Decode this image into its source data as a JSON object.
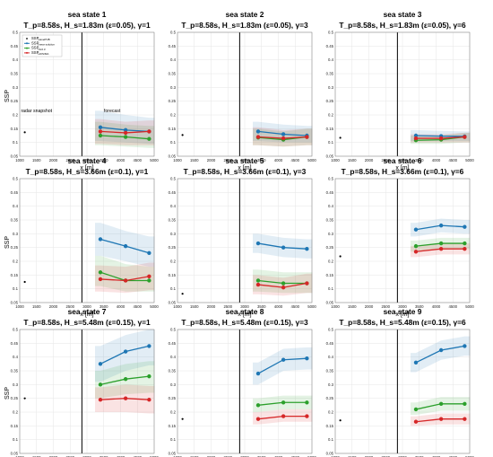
{
  "chart_data": [
    {
      "type": "line",
      "title_line1": "sea state 1",
      "title_line2": "T_p=8.58s, H_s=1.83m (ε=0.05), γ=1",
      "ylabel": "SSP",
      "xlabel": "x [m]",
      "xlim": [
        1000,
        5000
      ],
      "ylim": [
        0.05,
        0.5
      ],
      "xticks": [
        1000,
        1500,
        2000,
        2500,
        3000,
        3500,
        4000,
        4500,
        5000
      ],
      "yticks": [
        0.05,
        0.1,
        0.15,
        0.2,
        0.25,
        0.3,
        0.35,
        0.4,
        0.45,
        0.5
      ],
      "divider_x": 2850,
      "grid": true,
      "annotations": [
        {
          "text": "radar snapshot",
          "x": 1500,
          "y": 0.21
        },
        {
          "text": "forecast",
          "x": 3750,
          "y": 0.21
        }
      ],
      "legend": {
        "placement": "top-left",
        "entries": [
          {
            "main": "SSP",
            "sub": "wavePUB",
            "color": "#000000"
          },
          {
            "main": "SSP",
            "sub": "linear solution",
            "color": "#1f77b4"
          },
          {
            "main": "SSP",
            "sub": "NL0.3",
            "color": "#2ca02c"
          },
          {
            "main": "SSP",
            "sub": "HOS/MA",
            "color": "#d62728"
          }
        ]
      },
      "snapshot": {
        "x": 1150,
        "y": 0.137
      },
      "x": [
        3400,
        4150,
        4850
      ],
      "series": [
        {
          "color": "#1f77b4",
          "values": [
            0.155,
            0.145,
            0.14
          ],
          "band": [
            [
              0.105,
              0.215
            ],
            [
              0.1,
              0.2
            ],
            [
              0.095,
              0.19
            ]
          ]
        },
        {
          "color": "#2ca02c",
          "values": [
            0.125,
            0.12,
            0.113
          ],
          "band": [
            [
              0.09,
              0.175
            ],
            [
              0.085,
              0.165
            ],
            [
              0.08,
              0.16
            ]
          ]
        },
        {
          "color": "#d62728",
          "values": [
            0.14,
            0.135,
            0.14
          ],
          "band": [
            [
              0.095,
              0.185
            ],
            [
              0.09,
              0.175
            ],
            [
              0.09,
              0.18
            ]
          ]
        }
      ]
    },
    {
      "type": "line",
      "title_line1": "sea state 2",
      "title_line2": "T_p=8.58s, H_s=1.83m (ε=0.05), γ=3",
      "ylabel": "",
      "xlabel": "x [m]",
      "xlim": [
        1000,
        5000
      ],
      "ylim": [
        0.05,
        0.5
      ],
      "xticks": [
        1000,
        1500,
        2000,
        2500,
        3000,
        3500,
        4000,
        4500,
        5000
      ],
      "yticks": [
        0.05,
        0.1,
        0.15,
        0.2,
        0.25,
        0.3,
        0.35,
        0.4,
        0.45,
        0.5
      ],
      "divider_x": 2850,
      "grid": true,
      "snapshot": {
        "x": 1150,
        "y": 0.127
      },
      "x": [
        3400,
        4150,
        4850
      ],
      "series": [
        {
          "color": "#1f77b4",
          "values": [
            0.14,
            0.13,
            0.125
          ],
          "band": [
            [
              0.105,
              0.175
            ],
            [
              0.1,
              0.165
            ],
            [
              0.1,
              0.16
            ]
          ]
        },
        {
          "color": "#2ca02c",
          "values": [
            0.118,
            0.11,
            0.12
          ],
          "band": [
            [
              0.09,
              0.15
            ],
            [
              0.085,
              0.14
            ],
            [
              0.09,
              0.15
            ]
          ]
        },
        {
          "color": "#d62728",
          "values": [
            0.12,
            0.115,
            0.12
          ],
          "band": [
            [
              0.09,
              0.155
            ],
            [
              0.085,
              0.145
            ],
            [
              0.09,
              0.15
            ]
          ]
        }
      ]
    },
    {
      "type": "line",
      "title_line1": "sea state 3",
      "title_line2": "T_p=8.58s, H_s=1.83m (ε=0.05), γ=6",
      "ylabel": "",
      "xlabel": "x [m]",
      "xlim": [
        1000,
        5000
      ],
      "ylim": [
        0.05,
        0.5
      ],
      "xticks": [
        1000,
        1500,
        2000,
        2500,
        3000,
        3500,
        4000,
        4500,
        5000
      ],
      "yticks": [
        0.05,
        0.1,
        0.15,
        0.2,
        0.25,
        0.3,
        0.35,
        0.4,
        0.45,
        0.5
      ],
      "divider_x": 2850,
      "grid": true,
      "snapshot": {
        "x": 1150,
        "y": 0.117
      },
      "x": [
        3400,
        4150,
        4850
      ],
      "series": [
        {
          "color": "#1f77b4",
          "values": [
            0.125,
            0.123,
            0.122
          ],
          "band": [
            [
              0.105,
              0.145
            ],
            [
              0.105,
              0.142
            ],
            [
              0.105,
              0.14
            ]
          ]
        },
        {
          "color": "#2ca02c",
          "values": [
            0.108,
            0.11,
            0.12
          ],
          "band": [
            [
              0.095,
              0.125
            ],
            [
              0.095,
              0.125
            ],
            [
              0.1,
              0.135
            ]
          ]
        },
        {
          "color": "#d62728",
          "values": [
            0.115,
            0.115,
            0.12
          ],
          "band": [
            [
              0.1,
              0.13
            ],
            [
              0.1,
              0.13
            ],
            [
              0.1,
              0.135
            ]
          ]
        }
      ]
    },
    {
      "type": "line",
      "title_line1": "sea state 4",
      "title_line2": "T_p=8.58s, H_s=3.66m (ε=0.1), γ=1",
      "ylabel": "SSP",
      "xlabel": "x [m]",
      "xlim": [
        1000,
        5000
      ],
      "ylim": [
        0.05,
        0.5
      ],
      "xticks": [
        1000,
        1500,
        2000,
        2500,
        3000,
        3500,
        4000,
        4500,
        5000
      ],
      "yticks": [
        0.05,
        0.1,
        0.15,
        0.2,
        0.25,
        0.3,
        0.35,
        0.4,
        0.45,
        0.5
      ],
      "divider_x": 2850,
      "grid": true,
      "snapshot": {
        "x": 1150,
        "y": 0.125
      },
      "x": [
        3400,
        4150,
        4850
      ],
      "series": [
        {
          "color": "#1f77b4",
          "values": [
            0.28,
            0.255,
            0.23
          ],
          "band": [
            [
              0.22,
              0.34
            ],
            [
              0.2,
              0.31
            ],
            [
              0.18,
              0.29
            ]
          ]
        },
        {
          "color": "#2ca02c",
          "values": [
            0.16,
            0.13,
            0.13
          ],
          "band": [
            [
              0.11,
              0.22
            ],
            [
              0.09,
              0.19
            ],
            [
              0.09,
              0.18
            ]
          ]
        },
        {
          "color": "#d62728",
          "values": [
            0.135,
            0.13,
            0.145
          ],
          "band": [
            [
              0.09,
              0.185
            ],
            [
              0.085,
              0.18
            ],
            [
              0.095,
              0.195
            ]
          ]
        }
      ]
    },
    {
      "type": "line",
      "title_line1": "sea state 5",
      "title_line2": "T_p=8.58s, H_s=3.66m (ε=0.1), γ=3",
      "ylabel": "",
      "xlabel": "x [m]",
      "xlim": [
        1000,
        5000
      ],
      "ylim": [
        0.05,
        0.5
      ],
      "xticks": [
        1000,
        1500,
        2000,
        2500,
        3000,
        3500,
        4000,
        4500,
        5000
      ],
      "yticks": [
        0.05,
        0.1,
        0.15,
        0.2,
        0.25,
        0.3,
        0.35,
        0.4,
        0.45,
        0.5
      ],
      "divider_x": 2850,
      "grid": true,
      "snapshot": {
        "x": 1150,
        "y": 0.082
      },
      "x": [
        3400,
        4150,
        4850
      ],
      "series": [
        {
          "color": "#1f77b4",
          "values": [
            0.265,
            0.25,
            0.245
          ],
          "band": [
            [
              0.23,
              0.3
            ],
            [
              0.215,
              0.285
            ],
            [
              0.21,
              0.28
            ]
          ]
        },
        {
          "color": "#2ca02c",
          "values": [
            0.13,
            0.12,
            0.12
          ],
          "band": [
            [
              0.09,
              0.17
            ],
            [
              0.085,
              0.16
            ],
            [
              0.085,
              0.16
            ]
          ]
        },
        {
          "color": "#d62728",
          "values": [
            0.115,
            0.105,
            0.12
          ],
          "band": [
            [
              0.08,
              0.15
            ],
            [
              0.075,
              0.14
            ],
            [
              0.085,
              0.155
            ]
          ]
        }
      ]
    },
    {
      "type": "line",
      "title_line1": "sea state 6",
      "title_line2": "T_p=8.58s, H_s=3.66m (ε=0.1), γ=6",
      "ylabel": "",
      "xlabel": "x [m]",
      "xlim": [
        1000,
        5000
      ],
      "ylim": [
        0.05,
        0.5
      ],
      "xticks": [
        1000,
        1500,
        2000,
        2500,
        3000,
        3500,
        4000,
        4500,
        5000
      ],
      "yticks": [
        0.05,
        0.1,
        0.15,
        0.2,
        0.25,
        0.3,
        0.35,
        0.4,
        0.45,
        0.5
      ],
      "divider_x": 2850,
      "grid": true,
      "snapshot": {
        "x": 1150,
        "y": 0.218
      },
      "x": [
        3400,
        4150,
        4850
      ],
      "series": [
        {
          "color": "#1f77b4",
          "values": [
            0.315,
            0.33,
            0.325
          ],
          "band": [
            [
              0.29,
              0.34
            ],
            [
              0.305,
              0.355
            ],
            [
              0.3,
              0.35
            ]
          ]
        },
        {
          "color": "#2ca02c",
          "values": [
            0.255,
            0.265,
            0.265
          ],
          "band": [
            [
              0.235,
              0.275
            ],
            [
              0.245,
              0.285
            ],
            [
              0.245,
              0.285
            ]
          ]
        },
        {
          "color": "#d62728",
          "values": [
            0.235,
            0.245,
            0.245
          ],
          "band": [
            [
              0.215,
              0.255
            ],
            [
              0.225,
              0.265
            ],
            [
              0.225,
              0.265
            ]
          ]
        }
      ]
    },
    {
      "type": "line",
      "title_line1": "sea state 7",
      "title_line2": "T_p=8.58s, H_s=5.48m (ε=0.15), γ=1",
      "ylabel": "SSP",
      "xlabel": "x [m]",
      "xlim": [
        1000,
        5000
      ],
      "ylim": [
        0.05,
        0.5
      ],
      "xticks": [
        1000,
        1500,
        2000,
        2500,
        3000,
        3500,
        4000,
        4500,
        5000
      ],
      "yticks": [
        0.05,
        0.1,
        0.15,
        0.2,
        0.25,
        0.3,
        0.35,
        0.4,
        0.45,
        0.5
      ],
      "divider_x": 2850,
      "grid": true,
      "snapshot": {
        "x": 1150,
        "y": 0.25
      },
      "x": [
        3400,
        4150,
        4850
      ],
      "series": [
        {
          "color": "#1f77b4",
          "values": [
            0.375,
            0.42,
            0.44
          ],
          "band": [
            [
              0.31,
              0.44
            ],
            [
              0.35,
              0.48
            ],
            [
              0.37,
              0.5
            ]
          ]
        },
        {
          "color": "#2ca02c",
          "values": [
            0.3,
            0.32,
            0.33
          ],
          "band": [
            [
              0.25,
              0.35
            ],
            [
              0.265,
              0.375
            ],
            [
              0.27,
              0.385
            ]
          ]
        },
        {
          "color": "#d62728",
          "values": [
            0.245,
            0.25,
            0.245
          ],
          "band": [
            [
              0.2,
              0.29
            ],
            [
              0.2,
              0.3
            ],
            [
              0.195,
              0.295
            ]
          ]
        }
      ]
    },
    {
      "type": "line",
      "title_line1": "sea state 8",
      "title_line2": "T_p=8.58s, H_s=5.48m (ε=0.15), γ=3",
      "ylabel": "",
      "xlabel": "x [m]",
      "xlim": [
        1000,
        5000
      ],
      "ylim": [
        0.05,
        0.5
      ],
      "xticks": [
        1000,
        1500,
        2000,
        2500,
        3000,
        3500,
        4000,
        4500,
        5000
      ],
      "yticks": [
        0.05,
        0.1,
        0.15,
        0.2,
        0.25,
        0.3,
        0.35,
        0.4,
        0.45,
        0.5
      ],
      "divider_x": 2850,
      "grid": true,
      "snapshot": {
        "x": 1150,
        "y": 0.175
      },
      "x": [
        3400,
        4150,
        4850
      ],
      "series": [
        {
          "color": "#1f77b4",
          "values": [
            0.34,
            0.39,
            0.395
          ],
          "band": [
            [
              0.3,
              0.38
            ],
            [
              0.35,
              0.43
            ],
            [
              0.355,
              0.435
            ]
          ]
        },
        {
          "color": "#2ca02c",
          "values": [
            0.225,
            0.235,
            0.235
          ],
          "band": [
            [
              0.2,
              0.25
            ],
            [
              0.21,
              0.26
            ],
            [
              0.21,
              0.26
            ]
          ]
        },
        {
          "color": "#d62728",
          "values": [
            0.175,
            0.185,
            0.185
          ],
          "band": [
            [
              0.155,
              0.2
            ],
            [
              0.165,
              0.21
            ],
            [
              0.165,
              0.21
            ]
          ]
        }
      ]
    },
    {
      "type": "line",
      "title_line1": "sea state 9",
      "title_line2": "T_p=8.58s, H_s=5.48m (ε=0.15), γ=6",
      "ylabel": "",
      "xlabel": "x [m]",
      "xlim": [
        1000,
        5000
      ],
      "ylim": [
        0.05,
        0.5
      ],
      "xticks": [
        1000,
        1500,
        2000,
        2500,
        3000,
        3500,
        4000,
        4500,
        5000
      ],
      "yticks": [
        0.05,
        0.1,
        0.15,
        0.2,
        0.25,
        0.3,
        0.35,
        0.4,
        0.45,
        0.5
      ],
      "divider_x": 2850,
      "grid": true,
      "snapshot": {
        "x": 1150,
        "y": 0.17
      },
      "x": [
        3400,
        4150,
        4850
      ],
      "series": [
        {
          "color": "#1f77b4",
          "values": [
            0.38,
            0.425,
            0.44
          ],
          "band": [
            [
              0.345,
              0.415
            ],
            [
              0.39,
              0.46
            ],
            [
              0.405,
              0.475
            ]
          ]
        },
        {
          "color": "#2ca02c",
          "values": [
            0.21,
            0.23,
            0.23
          ],
          "band": [
            [
              0.19,
              0.235
            ],
            [
              0.205,
              0.255
            ],
            [
              0.205,
              0.255
            ]
          ]
        },
        {
          "color": "#d62728",
          "values": [
            0.165,
            0.175,
            0.175
          ],
          "band": [
            [
              0.15,
              0.185
            ],
            [
              0.155,
              0.195
            ],
            [
              0.155,
              0.195
            ]
          ]
        }
      ]
    }
  ]
}
